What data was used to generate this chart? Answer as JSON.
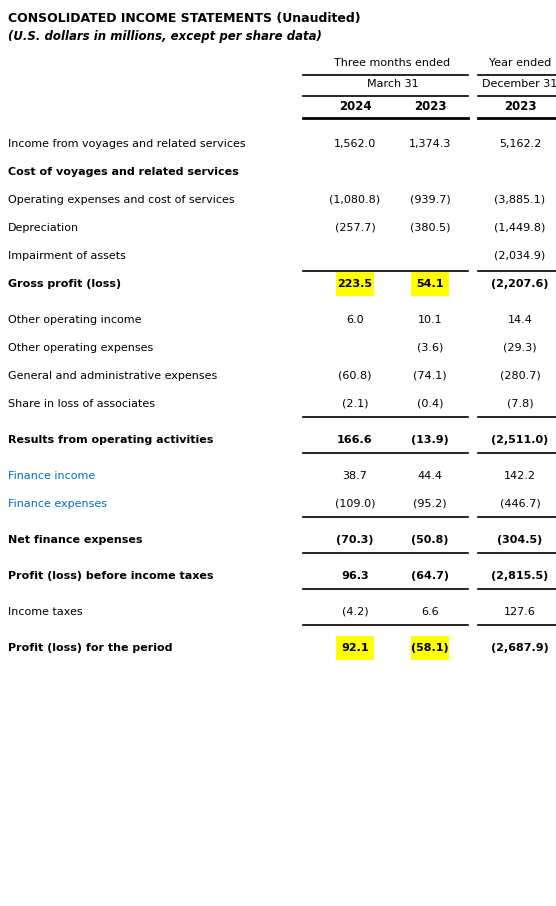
{
  "title1": "CONSOLIDATED INCOME STATEMENTS (Unaudited)",
  "title2": "(U.S. dollars in millions, except per share data)",
  "col_header1": "Three months ended",
  "col_header2": "Year ended",
  "col_sub1": "March 31",
  "col_sub2": "December 31",
  "col_years": [
    "2024",
    "2023",
    "2023"
  ],
  "rows": [
    {
      "label": "Income from voyages and related services",
      "bold": false,
      "vals": [
        "1,562.0",
        "1,374.3",
        "5,162.2"
      ],
      "highlight": [
        false,
        false,
        false
      ],
      "line_above": false,
      "line_below": false,
      "blue_label": false,
      "spacer": false
    },
    {
      "label": "Cost of voyages and related services",
      "bold": true,
      "vals": [
        "",
        "",
        ""
      ],
      "highlight": [
        false,
        false,
        false
      ],
      "line_above": false,
      "line_below": false,
      "blue_label": false,
      "spacer": false
    },
    {
      "label": "Operating expenses and cost of services",
      "bold": false,
      "vals": [
        "(1,080.8)",
        "(939.7)",
        "(3,885.1)"
      ],
      "highlight": [
        false,
        false,
        false
      ],
      "line_above": false,
      "line_below": false,
      "blue_label": false,
      "spacer": false
    },
    {
      "label": "Depreciation",
      "bold": false,
      "vals": [
        "(257.7)",
        "(380.5)",
        "(1,449.8)"
      ],
      "highlight": [
        false,
        false,
        false
      ],
      "line_above": false,
      "line_below": false,
      "blue_label": false,
      "spacer": false
    },
    {
      "label": "Impairment of assets",
      "bold": false,
      "vals": [
        "",
        "",
        "(2,034.9)"
      ],
      "highlight": [
        false,
        false,
        false
      ],
      "line_above": false,
      "line_below": false,
      "blue_label": false,
      "spacer": false
    },
    {
      "label": "Gross profit (loss)",
      "bold": true,
      "vals": [
        "223.5",
        "54.1",
        "(2,207.6)"
      ],
      "highlight": [
        true,
        true,
        false
      ],
      "line_above": true,
      "line_below": false,
      "blue_label": false,
      "spacer": false
    },
    {
      "label": "",
      "bold": false,
      "vals": [
        "",
        "",
        ""
      ],
      "highlight": [
        false,
        false,
        false
      ],
      "line_above": false,
      "line_below": false,
      "blue_label": false,
      "spacer": true
    },
    {
      "label": "Other operating income",
      "bold": false,
      "vals": [
        "6.0",
        "10.1",
        "14.4"
      ],
      "highlight": [
        false,
        false,
        false
      ],
      "line_above": false,
      "line_below": false,
      "blue_label": false,
      "spacer": false
    },
    {
      "label": "Other operating expenses",
      "bold": false,
      "vals": [
        "",
        "(3.6)",
        "(29.3)"
      ],
      "highlight": [
        false,
        false,
        false
      ],
      "line_above": false,
      "line_below": false,
      "blue_label": false,
      "spacer": false
    },
    {
      "label": "General and administrative expenses",
      "bold": false,
      "vals": [
        "(60.8)",
        "(74.1)",
        "(280.7)"
      ],
      "highlight": [
        false,
        false,
        false
      ],
      "line_above": false,
      "line_below": false,
      "blue_label": false,
      "spacer": false
    },
    {
      "label": "Share in loss of associates",
      "bold": false,
      "vals": [
        "(2.1)",
        "(0.4)",
        "(7.8)"
      ],
      "highlight": [
        false,
        false,
        false
      ],
      "line_above": false,
      "line_below": true,
      "blue_label": false,
      "spacer": false
    },
    {
      "label": "",
      "bold": false,
      "vals": [
        "",
        "",
        ""
      ],
      "highlight": [
        false,
        false,
        false
      ],
      "line_above": false,
      "line_below": false,
      "blue_label": false,
      "spacer": true
    },
    {
      "label": "Results from operating activities",
      "bold": true,
      "vals": [
        "166.6",
        "(13.9)",
        "(2,511.0)"
      ],
      "highlight": [
        false,
        false,
        false
      ],
      "line_above": false,
      "line_below": true,
      "blue_label": false,
      "spacer": false
    },
    {
      "label": "",
      "bold": false,
      "vals": [
        "",
        "",
        ""
      ],
      "highlight": [
        false,
        false,
        false
      ],
      "line_above": false,
      "line_below": false,
      "blue_label": false,
      "spacer": true
    },
    {
      "label": "Finance income",
      "bold": false,
      "vals": [
        "38.7",
        "44.4",
        "142.2"
      ],
      "highlight": [
        false,
        false,
        false
      ],
      "line_above": false,
      "line_below": false,
      "blue_label": true,
      "spacer": false
    },
    {
      "label": "Finance expenses",
      "bold": false,
      "vals": [
        "(109.0)",
        "(95.2)",
        "(446.7)"
      ],
      "highlight": [
        false,
        false,
        false
      ],
      "line_above": false,
      "line_below": true,
      "blue_label": true,
      "spacer": false
    },
    {
      "label": "",
      "bold": false,
      "vals": [
        "",
        "",
        ""
      ],
      "highlight": [
        false,
        false,
        false
      ],
      "line_above": false,
      "line_below": false,
      "blue_label": false,
      "spacer": true
    },
    {
      "label": "Net finance expenses",
      "bold": true,
      "vals": [
        "(70.3)",
        "(50.8)",
        "(304.5)"
      ],
      "highlight": [
        false,
        false,
        false
      ],
      "line_above": false,
      "line_below": true,
      "blue_label": false,
      "spacer": false
    },
    {
      "label": "",
      "bold": false,
      "vals": [
        "",
        "",
        ""
      ],
      "highlight": [
        false,
        false,
        false
      ],
      "line_above": false,
      "line_below": false,
      "blue_label": false,
      "spacer": true
    },
    {
      "label": "Profit (loss) before income taxes",
      "bold": true,
      "vals": [
        "96.3",
        "(64.7)",
        "(2,815.5)"
      ],
      "highlight": [
        false,
        false,
        false
      ],
      "line_above": false,
      "line_below": true,
      "blue_label": false,
      "spacer": false
    },
    {
      "label": "",
      "bold": false,
      "vals": [
        "",
        "",
        ""
      ],
      "highlight": [
        false,
        false,
        false
      ],
      "line_above": false,
      "line_below": false,
      "blue_label": false,
      "spacer": true
    },
    {
      "label": "Income taxes",
      "bold": false,
      "vals": [
        "(4.2)",
        "6.6",
        "127.6"
      ],
      "highlight": [
        false,
        false,
        false
      ],
      "line_above": false,
      "line_below": true,
      "blue_label": false,
      "spacer": false
    },
    {
      "label": "",
      "bold": false,
      "vals": [
        "",
        "",
        ""
      ],
      "highlight": [
        false,
        false,
        false
      ],
      "line_above": false,
      "line_below": false,
      "blue_label": false,
      "spacer": true
    },
    {
      "label": "Profit (loss) for the period",
      "bold": true,
      "vals": [
        "92.1",
        "(58.1)",
        "(2,687.9)"
      ],
      "highlight": [
        true,
        true,
        false
      ],
      "line_above": false,
      "line_below": false,
      "blue_label": false,
      "spacer": false
    }
  ],
  "highlight_color": "#FFFF00",
  "text_color": "#000000",
  "blue_color": "#0070C0",
  "header_line_color": "#000000",
  "figwidth": 5.56,
  "figheight": 9.06,
  "dpi": 100
}
